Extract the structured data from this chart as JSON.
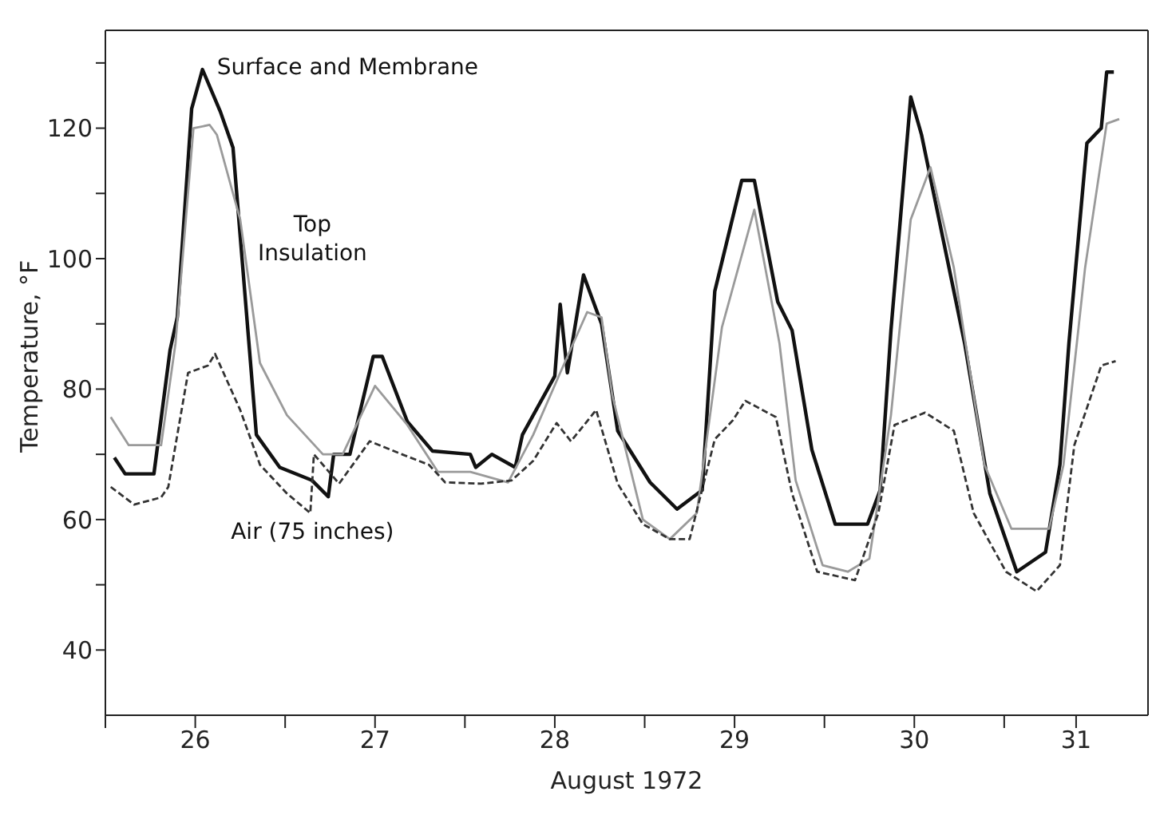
{
  "chart_data": {
    "type": "line",
    "xlabel": "August 1972",
    "ylabel": "Temperature, °F",
    "xlim": [
      26,
      31.8
    ],
    "xticks": [
      {
        "value": 26,
        "label": null
      },
      {
        "value": 26.5,
        "label": "26"
      },
      {
        "value": 27,
        "label": null
      },
      {
        "value": 27.5,
        "label": "27"
      },
      {
        "value": 28,
        "label": null
      },
      {
        "value": 28.5,
        "label": "28"
      },
      {
        "value": 29,
        "label": null
      },
      {
        "value": 29.5,
        "label": "29"
      },
      {
        "value": 30,
        "label": null
      },
      {
        "value": 30.5,
        "label": "30"
      },
      {
        "value": 31,
        "label": null
      },
      {
        "value": 31.4,
        "label": "31"
      }
    ],
    "ylim": [
      30,
      135
    ],
    "yticks": [
      40,
      {
        "value": 50,
        "label": null
      },
      60,
      {
        "value": 70,
        "label": null
      },
      80,
      {
        "value": 90,
        "label": null
      },
      100,
      {
        "value": 110,
        "label": null
      },
      120,
      {
        "value": 130,
        "label": null
      }
    ],
    "legend": false,
    "marker": "none",
    "series": [
      {
        "name": "Surface and Membrane",
        "color": "#111111",
        "line_style": "solid",
        "x": [
          26.05,
          26.11,
          26.27,
          26.36,
          26.4,
          26.48,
          26.54,
          26.64,
          26.71,
          26.84,
          26.97,
          27.15,
          27.24,
          27.27,
          27.36,
          27.49,
          27.54,
          27.68,
          27.82,
          28.03,
          28.06,
          28.15,
          28.28,
          28.32,
          28.5,
          28.53,
          28.57,
          28.66,
          28.76,
          28.85,
          29.03,
          29.18,
          29.32,
          29.39,
          29.54,
          29.61,
          29.74,
          29.82,
          29.93,
          30.06,
          30.24,
          30.31,
          30.37,
          30.48,
          30.54,
          30.78,
          30.92,
          31.07,
          31.23,
          31.31,
          31.36,
          31.46,
          31.54,
          31.57,
          31.61
        ],
        "values": [
          69.5,
          67,
          67,
          86,
          91,
          123,
          129,
          122.5,
          117,
          73,
          68,
          66,
          63.5,
          70,
          70,
          85,
          85,
          75,
          70.5,
          70,
          68,
          70,
          68,
          73,
          82,
          93,
          82.5,
          97.5,
          90,
          73.6,
          65.7,
          61.6,
          64.5,
          95,
          112,
          112,
          93.4,
          89,
          70.7,
          59.3,
          59.3,
          64.5,
          89,
          124.8,
          119,
          87,
          64,
          52,
          55,
          68.4,
          87,
          117.7,
          120,
          128.6,
          128.6
        ]
      },
      {
        "name": "Top Insulation",
        "color": "#9a9a9a",
        "line_style": "solid",
        "x": [
          26.03,
          26.13,
          26.31,
          26.39,
          26.49,
          26.58,
          26.62,
          26.75,
          26.86,
          27.01,
          27.21,
          27.32,
          27.5,
          27.68,
          27.85,
          28.03,
          28.24,
          28.38,
          28.53,
          28.68,
          28.76,
          28.82,
          28.99,
          29.14,
          29.29,
          29.43,
          29.61,
          29.75,
          29.84,
          29.99,
          30.13,
          30.25,
          30.37,
          30.48,
          30.59,
          30.72,
          30.89,
          31.04,
          31.25,
          31.33,
          31.45,
          31.57,
          31.64
        ],
        "values": [
          75.7,
          71.4,
          71.4,
          87,
          120,
          120.5,
          119,
          106,
          84,
          76,
          70,
          70,
          80.5,
          74.5,
          67.3,
          67.3,
          65.7,
          73,
          82.5,
          91.8,
          91,
          79,
          60,
          57,
          61,
          89.5,
          107.5,
          87,
          66,
          53,
          52,
          54,
          76,
          106,
          114,
          98.6,
          68.4,
          58.6,
          58.6,
          68.4,
          98.6,
          120.7,
          121.4
        ]
      },
      {
        "name": "Air (75 inches)",
        "color": "#333333",
        "line_style": "dashed",
        "x": [
          26.03,
          26.16,
          26.31,
          26.35,
          26.46,
          26.57,
          26.61,
          26.75,
          26.86,
          27.01,
          27.14,
          27.16,
          27.3,
          27.47,
          27.65,
          27.8,
          27.89,
          28.09,
          28.26,
          28.38,
          28.51,
          28.59,
          28.73,
          28.85,
          28.99,
          29.14,
          29.25,
          29.39,
          29.49,
          29.56,
          29.73,
          29.82,
          29.96,
          30.17,
          30.3,
          30.39,
          30.56,
          30.72,
          30.83,
          31.01,
          31.18,
          31.31,
          31.39,
          31.54,
          31.62
        ],
        "values": [
          65,
          62.3,
          63.4,
          65,
          82.5,
          83.6,
          85.4,
          76.8,
          68.4,
          64,
          61,
          70,
          65.5,
          72,
          70,
          68.4,
          65.7,
          65.5,
          66,
          69,
          74.8,
          72,
          76.8,
          65.5,
          59.3,
          57,
          57,
          72.3,
          75.2,
          78.2,
          75.7,
          64,
          52,
          50.7,
          61,
          74.5,
          76.4,
          73.6,
          61,
          52,
          49,
          53,
          71.4,
          83.6,
          84.3
        ]
      }
    ]
  }
}
